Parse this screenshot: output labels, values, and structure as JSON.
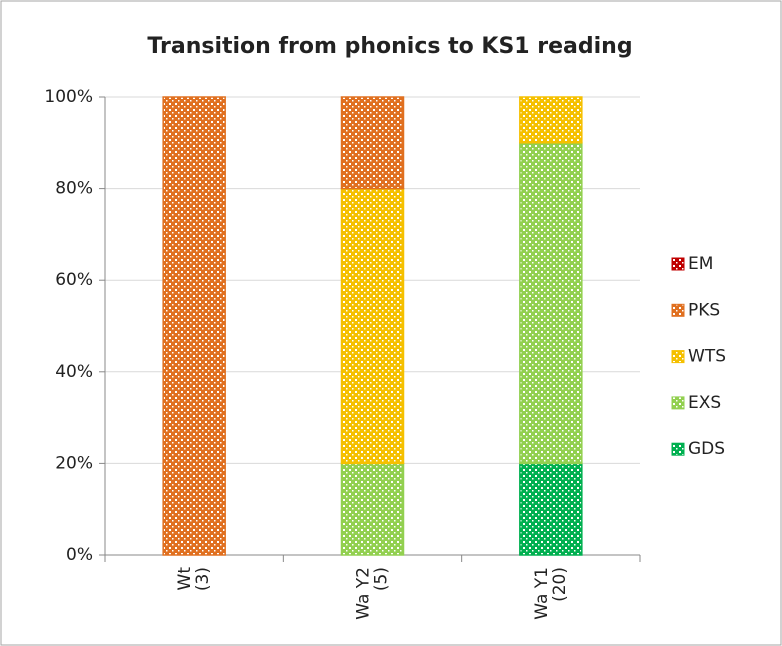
{
  "chart_data": {
    "type": "bar",
    "stacked": true,
    "title": "Transition from phonics to KS1 reading",
    "categories": [
      [
        "Wt",
        "(3)"
      ],
      [
        "Wa Y2",
        "(5)"
      ],
      [
        "Wa Y1",
        "(20)"
      ]
    ],
    "series": [
      {
        "name": "GDS",
        "color": "#00b050",
        "values": [
          0,
          0,
          20
        ]
      },
      {
        "name": "EXS",
        "color": "#92d050",
        "values": [
          0,
          20,
          70
        ]
      },
      {
        "name": "WTS",
        "color": "#f5c000",
        "values": [
          0,
          60,
          10
        ]
      },
      {
        "name": "PKS",
        "color": "#e07020",
        "values": [
          100,
          20,
          0
        ]
      },
      {
        "name": "EM",
        "color": "#c00000",
        "values": [
          0,
          0,
          0
        ]
      }
    ],
    "ylim": [
      0,
      100
    ],
    "yticks": [
      {
        "value": 0,
        "label": "0%"
      },
      {
        "value": 20,
        "label": "20%"
      },
      {
        "value": 40,
        "label": "40%"
      },
      {
        "value": 60,
        "label": "60%"
      },
      {
        "value": 80,
        "label": "80%"
      },
      {
        "value": 100,
        "label": "100%"
      }
    ],
    "grid": true,
    "legend": "right"
  }
}
